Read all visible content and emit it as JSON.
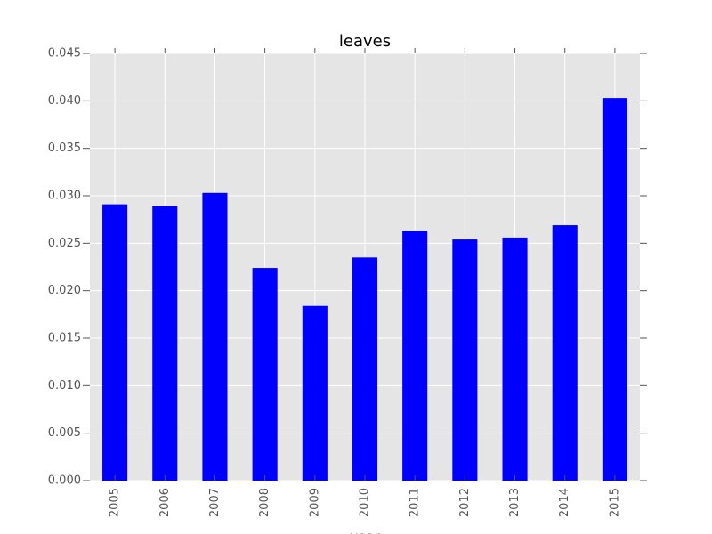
{
  "chart_data": {
    "type": "bar",
    "title": "leaves",
    "xlabel": "year",
    "ylabel": "",
    "categories": [
      "2005",
      "2006",
      "2007",
      "2008",
      "2009",
      "2010",
      "2011",
      "2012",
      "2013",
      "2014",
      "2015"
    ],
    "values": [
      0.0291,
      0.0289,
      0.0303,
      0.0224,
      0.0184,
      0.0235,
      0.0263,
      0.0254,
      0.0256,
      0.0269,
      0.0403
    ],
    "ylim": [
      0,
      0.045
    ],
    "yticks": [
      "0.000",
      "0.005",
      "0.010",
      "0.015",
      "0.020",
      "0.025",
      "0.030",
      "0.035",
      "0.040",
      "0.045"
    ],
    "grid": true,
    "legend": "none",
    "colors": {
      "bar": "#0000ff",
      "plot_background": "#e5e5e5",
      "grid": "#ffffff",
      "tick": "#555555"
    }
  }
}
